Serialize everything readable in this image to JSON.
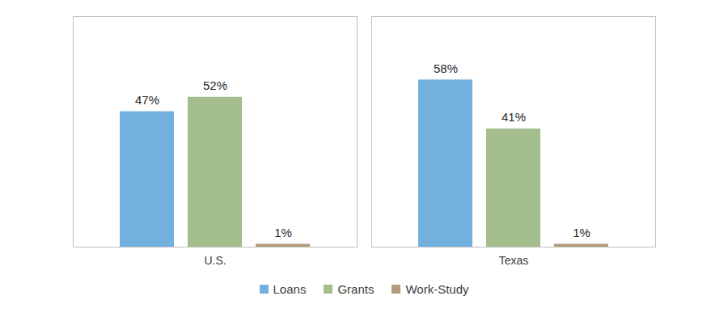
{
  "chart_data": {
    "type": "bar",
    "categories": [
      "U.S.",
      "Texas"
    ],
    "series": [
      {
        "name": "Loans",
        "color": "#72b0de",
        "values": [
          47,
          58
        ],
        "value_labels": [
          "47%",
          "58%"
        ]
      },
      {
        "name": "Grants",
        "color": "#a3bd8c",
        "values": [
          52,
          41
        ],
        "value_labels": [
          "52%",
          "41%"
        ]
      },
      {
        "name": "Work-Study",
        "color": "#b59b7d",
        "values": [
          1,
          1
        ],
        "value_labels": [
          "1%",
          "1%"
        ]
      }
    ],
    "ylim": [
      0,
      80
    ],
    "yticks": [],
    "grid": false,
    "legend": "bottom",
    "data_labels": true,
    "tick_labels": "x"
  }
}
